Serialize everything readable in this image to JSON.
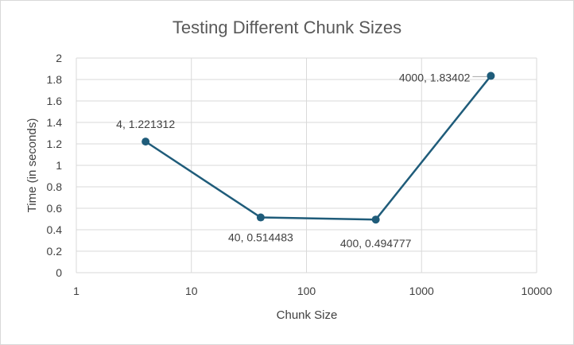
{
  "chart_data": {
    "type": "line",
    "title": "Testing Different Chunk Sizes",
    "xlabel": "Chunk Size",
    "ylabel": "Time (in seconds)",
    "x_scale": "log",
    "xlim": [
      1,
      10000
    ],
    "ylim": [
      0,
      2
    ],
    "x_ticks": [
      "1",
      "10",
      "100",
      "1000",
      "10000"
    ],
    "y_ticks": [
      "0",
      "0.2",
      "0.4",
      "0.6",
      "0.8",
      "1",
      "1.2",
      "1.4",
      "1.6",
      "1.8",
      "2"
    ],
    "grid": true,
    "legend": "none",
    "series": [
      {
        "x": [
          4,
          40,
          400,
          4000
        ],
        "y": [
          1.221312,
          0.514483,
          0.494777,
          1.83402
        ],
        "labels": [
          "4, 1.221312",
          "40, 0.514483",
          "400, 0.494777",
          "4000, 1.83402"
        ],
        "color": "#1f5c7a"
      }
    ]
  }
}
